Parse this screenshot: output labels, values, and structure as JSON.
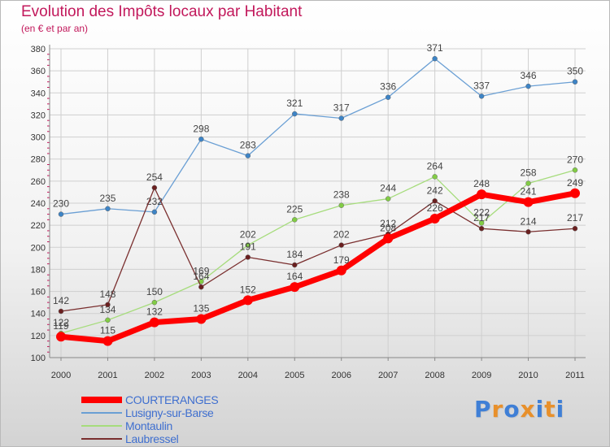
{
  "title": "Evolution des Impôts locaux par Habitant",
  "subtitle": "(en € et par an)",
  "logo": {
    "text": "Proxiti",
    "letter_colors": [
      "#3f7fd6",
      "#e8902b",
      "#3f7fd6",
      "#e8902b",
      "#3f7fd6",
      "#e8902b",
      "#3f7fd6"
    ]
  },
  "chart_data": {
    "type": "line",
    "title": "Evolution des Impôts locaux par Habitant",
    "ylabel": "(en € et par an)",
    "xlabel": "",
    "x": [
      "2000",
      "2001",
      "2002",
      "2003",
      "2004",
      "2005",
      "2006",
      "2007",
      "2008",
      "2009",
      "2010",
      "2011"
    ],
    "ylim": [
      100,
      380
    ],
    "yticks": [
      "100",
      "120",
      "140",
      "160",
      "180",
      "200",
      "220",
      "240",
      "260",
      "280",
      "300",
      "320",
      "340",
      "360",
      "380"
    ],
    "grid": true,
    "legend_position": "bottom-left",
    "series": [
      {
        "name": "Lusigny-sur-Barse",
        "color": "#6a9fd4",
        "marker_color": "#3d84c6",
        "values": [
          230,
          235,
          232,
          298,
          283,
          321,
          317,
          336,
          371,
          337,
          346,
          350
        ],
        "labels": [
          "230",
          "235",
          "232",
          "298",
          "283",
          "321",
          "317",
          "336",
          "371",
          "337",
          "346",
          "350"
        ]
      },
      {
        "name": "Montaulin",
        "color": "#a6dc7c",
        "marker_color": "#82cc45",
        "values": [
          122,
          134,
          150,
          169,
          202,
          225,
          238,
          244,
          264,
          222,
          258,
          270
        ],
        "labels": [
          "122",
          "134",
          "150",
          "169",
          "202",
          "225",
          "238",
          "244",
          "264",
          "222",
          "258",
          "270"
        ]
      },
      {
        "name": "Laubressel",
        "color": "#7a2f2f",
        "marker_color": "#6a1f1f",
        "values": [
          142,
          148,
          254,
          164,
          191,
          184,
          202,
          212,
          242,
          217,
          214,
          217
        ],
        "labels": [
          "142",
          "148",
          "254",
          "164",
          "191",
          "184",
          "202",
          "212",
          "242",
          "217",
          "214",
          "217"
        ]
      },
      {
        "name": "COURTERANGES",
        "color": "#ff0000",
        "marker_color": "#ff0000",
        "values": [
          119,
          115,
          132,
          135,
          152,
          164,
          179,
          208,
          226,
          248,
          241,
          249
        ],
        "labels": [
          "119",
          "115",
          "132",
          "135",
          "152",
          "164",
          "179",
          "208",
          "226",
          "248",
          "241",
          "249"
        ]
      }
    ],
    "legend": [
      {
        "name": "COURTERANGES",
        "color": "#ff0000",
        "label_color": "#3f6fcf"
      },
      {
        "name": "Lusigny-sur-Barse",
        "color": "#6a9fd4",
        "label_color": "#3f6fcf"
      },
      {
        "name": "Montaulin",
        "color": "#a6dc7c",
        "label_color": "#3f6fcf"
      },
      {
        "name": "Laubressel",
        "color": "#7a2f2f",
        "label_color": "#3f6fcf"
      }
    ]
  }
}
